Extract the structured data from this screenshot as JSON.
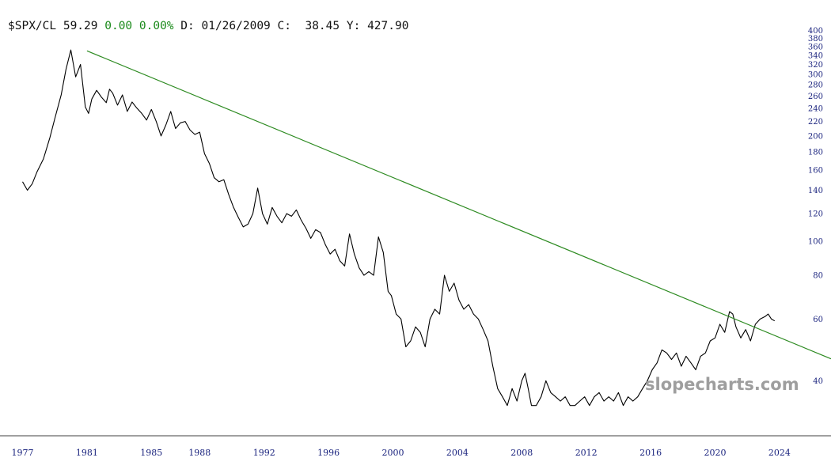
{
  "header": {
    "symbol": "$SPX/CL",
    "last": "59.29",
    "change": "0.00",
    "change_pct": "0.00%",
    "date_label": "D:",
    "date": "01/26/2009",
    "close_label": "C:",
    "close": "38.45",
    "y_label": "Y:",
    "y_value": "427.90"
  },
  "watermark": "slopecharts.com",
  "colors": {
    "price_line": "#000000",
    "trend_line": "#2e8b22",
    "axis_text": "#1a237e",
    "change_text": "#1a8a1a"
  },
  "chart_data": {
    "type": "line",
    "title": "",
    "xlabel": "",
    "ylabel": "",
    "log_scale": true,
    "grid": false,
    "xlim": [
      1975.6,
      2027.2
    ],
    "ylim": [
      33,
      400
    ],
    "x_ticks": [
      "1977",
      "1981",
      "1985",
      "1988",
      "1992",
      "1996",
      "2000",
      "2004",
      "2008",
      "2012",
      "2016",
      "2020",
      "2024"
    ],
    "y_ticks": [
      "400",
      "380",
      "360",
      "340",
      "320",
      "300",
      "280",
      "260",
      "240",
      "220",
      "200",
      "180",
      "160",
      "140",
      "120",
      "100",
      "80",
      "60",
      "40"
    ],
    "series": [
      {
        "x": [
          1977.0,
          1977.3,
          1977.6,
          1977.9,
          1978.3,
          1978.7,
          1979.0,
          1979.4,
          1979.7,
          1980.0,
          1980.3,
          1980.6,
          1980.9,
          1981.1,
          1981.3,
          1981.6,
          1981.9,
          1982.2,
          1982.4,
          1982.6,
          1982.9,
          1983.2,
          1983.5,
          1983.8,
          1984.1,
          1984.4,
          1984.7,
          1985.0,
          1985.3,
          1985.6,
          1985.9,
          1986.2,
          1986.5,
          1986.8,
          1987.1,
          1987.4,
          1987.7,
          1988.0,
          1988.3,
          1988.6,
          1988.9,
          1989.2,
          1989.5,
          1989.8,
          1990.1,
          1990.4,
          1990.7,
          1991.0,
          1991.3,
          1991.6,
          1991.9,
          1992.2,
          1992.5,
          1992.8,
          1993.1,
          1993.4,
          1993.7,
          1994.0,
          1994.3,
          1994.6,
          1994.9,
          1995.2,
          1995.5,
          1995.8,
          1996.1,
          1996.4,
          1996.7,
          1997.0,
          1997.3,
          1997.6,
          1997.9,
          1998.2,
          1998.5,
          1998.8,
          1999.1,
          1999.4,
          1999.7,
          1999.9,
          2000.2,
          2000.5,
          2000.8,
          2001.1,
          2001.4,
          2001.7,
          2002.0,
          2002.3,
          2002.6,
          2002.9,
          2003.2,
          2003.5,
          2003.8,
          2004.1,
          2004.4,
          2004.7,
          2005.0,
          2005.3,
          2005.6,
          2005.9,
          2006.2,
          2006.5,
          2006.8,
          2007.1,
          2007.4,
          2007.7,
          2008.0,
          2008.2,
          2008.4,
          2008.6,
          2008.9,
          2009.2,
          2009.5,
          2009.8,
          2010.1,
          2010.4,
          2010.7,
          2011.0,
          2011.3,
          2011.6,
          2011.9,
          2012.2,
          2012.5,
          2012.8,
          2013.1,
          2013.4,
          2013.7,
          2014.0,
          2014.3,
          2014.6,
          2014.9,
          2015.2,
          2015.5,
          2015.8,
          2016.1,
          2016.4,
          2016.7,
          2017.0,
          2017.3,
          2017.6,
          2017.9,
          2018.2,
          2018.5,
          2018.8,
          2019.1,
          2019.4,
          2019.7,
          2020.0,
          2020.3,
          2020.6,
          2020.9,
          2021.1,
          2021.3,
          2021.6,
          2021.9,
          2022.2,
          2022.5,
          2022.8,
          2023.1,
          2023.3,
          2023.5,
          2023.7
        ],
        "values": [
          148,
          140,
          146,
          158,
          172,
          198,
          224,
          262,
          310,
          352,
          295,
          320,
          242,
          232,
          255,
          270,
          258,
          249,
          272,
          265,
          245,
          262,
          235,
          250,
          240,
          232,
          222,
          238,
          220,
          200,
          215,
          235,
          210,
          218,
          220,
          208,
          202,
          205,
          178,
          167,
          152,
          148,
          150,
          136,
          125,
          117,
          110,
          112,
          120,
          142,
          120,
          112,
          125,
          118,
          113,
          120,
          118,
          123,
          115,
          109,
          102,
          108,
          106,
          98,
          92,
          95,
          88,
          85,
          105,
          92,
          84,
          80,
          82,
          80,
          103,
          93,
          72,
          70,
          62,
          60,
          50,
          52,
          57,
          55,
          50,
          60,
          64,
          62,
          80,
          72,
          76,
          68,
          64,
          66,
          62,
          60,
          56,
          52,
          44,
          38,
          36,
          34,
          38,
          35,
          40,
          42,
          38,
          34,
          34,
          36,
          40,
          37,
          36,
          35,
          36,
          34,
          34,
          35,
          36,
          34,
          36,
          37,
          35,
          36,
          35,
          37,
          34,
          36,
          35,
          36,
          38,
          40,
          43,
          45,
          49,
          48,
          46,
          48,
          44,
          47,
          45,
          43,
          47,
          48,
          52,
          53,
          58,
          55,
          63,
          62,
          57,
          53,
          56,
          52,
          58,
          60,
          61,
          62,
          60,
          59.29
        ]
      },
      {
        "name": "",
        "x": [
          1981.0,
          2027.2
        ],
        "values": [
          350,
          46.2
        ]
      }
    ]
  }
}
